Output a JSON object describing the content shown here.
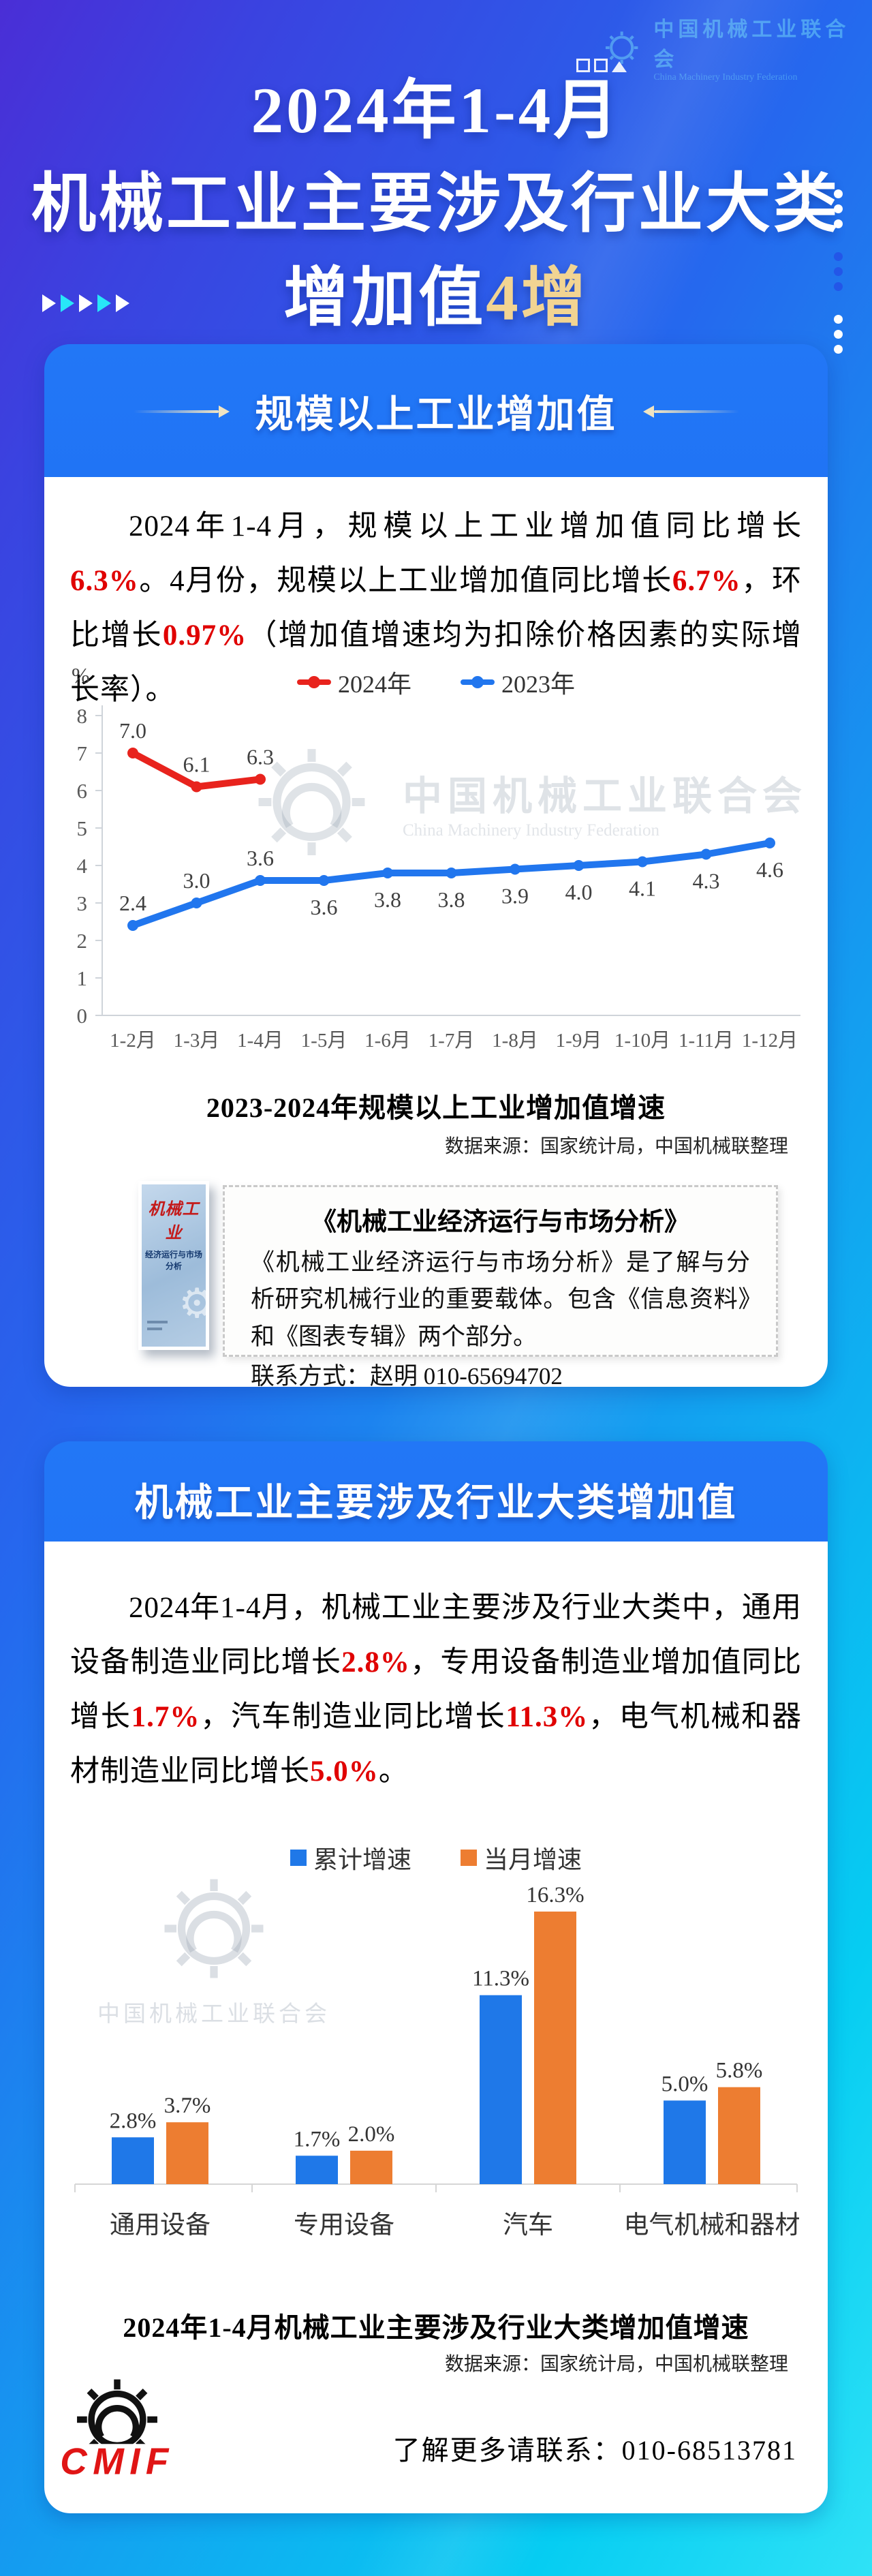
{
  "watermark": {
    "cn": "中国机械工业联合会",
    "en": "China Machinery Industry Federation"
  },
  "header": {
    "line1": "2024年1-4月",
    "line2": "机械工业主要涉及行业大类",
    "line3_white": "增加值",
    "line3_gold": "4增"
  },
  "section1": {
    "title": "规模以上工业增加值",
    "percent_label": "%",
    "paragraph": [
      {
        "t": "2024年1-4月，规模以上工业增加值同比增长"
      },
      {
        "t": "6.3%",
        "red": true
      },
      {
        "t": "。4月份，规模以上工业增加值同比增长"
      },
      {
        "t": "6.7%",
        "red": true
      },
      {
        "t": "，环比增长"
      },
      {
        "t": "0.97%",
        "red": true
      },
      {
        "t": "（增加值增速均为扣除价格因素的实际增长率）。"
      }
    ],
    "caption": "2023-2024年规模以上工业增加值增速",
    "source": "数据来源：国家统计局，中国机械联整理"
  },
  "promo": {
    "book_line1": "机械工业",
    "book_line2": "经济运行与市场分析",
    "stamp_title": "《机械工业经济运行与市场分析》",
    "stamp_body": "《机械工业经济运行与市场分析》是了解与分析研究机械行业的重要载体。包含《信息资料》和《图表专辑》两个部分。",
    "stamp_contact": "联系方式：赵明  010-65694702"
  },
  "section2": {
    "title": "机械工业主要涉及行业大类增加值",
    "paragraph": [
      {
        "t": "2024年1-4月，机械工业主要涉及行业大类中，通用设备制造业同比增长"
      },
      {
        "t": "2.8%",
        "red": true
      },
      {
        "t": "，专用设备制造业增加值同比增长"
      },
      {
        "t": "1.7%",
        "red": true
      },
      {
        "t": "，汽车制造业同比增长"
      },
      {
        "t": "11.3%",
        "red": true
      },
      {
        "t": "，电气机械和器材制造业同比增长"
      },
      {
        "t": "5.0%",
        "red": true
      },
      {
        "t": "。"
      }
    ],
    "caption": "2024年1-4月机械工业主要涉及行业大类增加值增速",
    "source": "数据来源：国家统计局，中国机械联整理"
  },
  "footer": {
    "logo_text": "CMIF",
    "contact": "了解更多请联系：010-68513781"
  },
  "chart_data": [
    {
      "type": "line",
      "title": "2023-2024年规模以上工业增加值增速",
      "ylabel": "%",
      "ylim": [
        0,
        8
      ],
      "yticks": [
        0,
        1,
        2,
        3,
        4,
        5,
        6,
        7,
        8
      ],
      "grid": false,
      "legend_position": "top",
      "categories": [
        "1-2月",
        "1-3月",
        "1-4月",
        "1-5月",
        "1-6月",
        "1-7月",
        "1-8月",
        "1-9月",
        "1-10月",
        "1-11月",
        "1-12月"
      ],
      "series": [
        {
          "name": "2024年",
          "color": "#e8231d",
          "values": [
            7.0,
            6.1,
            6.3
          ]
        },
        {
          "name": "2023年",
          "color": "#2176ee",
          "values": [
            2.4,
            3.0,
            3.6,
            3.6,
            3.8,
            3.8,
            3.9,
            4.0,
            4.1,
            4.3,
            4.6
          ],
          "labels_below_from": 3
        }
      ]
    },
    {
      "type": "bar",
      "title": "2024年1-4月机械工业主要涉及行业大类增加值增速",
      "categories": [
        "通用设备",
        "专用设备",
        "汽车",
        "电气机械和器材"
      ],
      "value_suffix": "%",
      "ylim": [
        0,
        18
      ],
      "grid": false,
      "legend_position": "top",
      "series": [
        {
          "name": "累计增速",
          "color": "#1f78e8",
          "values": [
            2.8,
            1.7,
            11.3,
            5.0
          ]
        },
        {
          "name": "当月增速",
          "color": "#ed7d31",
          "values": [
            3.7,
            2.0,
            16.3,
            5.8
          ]
        }
      ]
    }
  ]
}
